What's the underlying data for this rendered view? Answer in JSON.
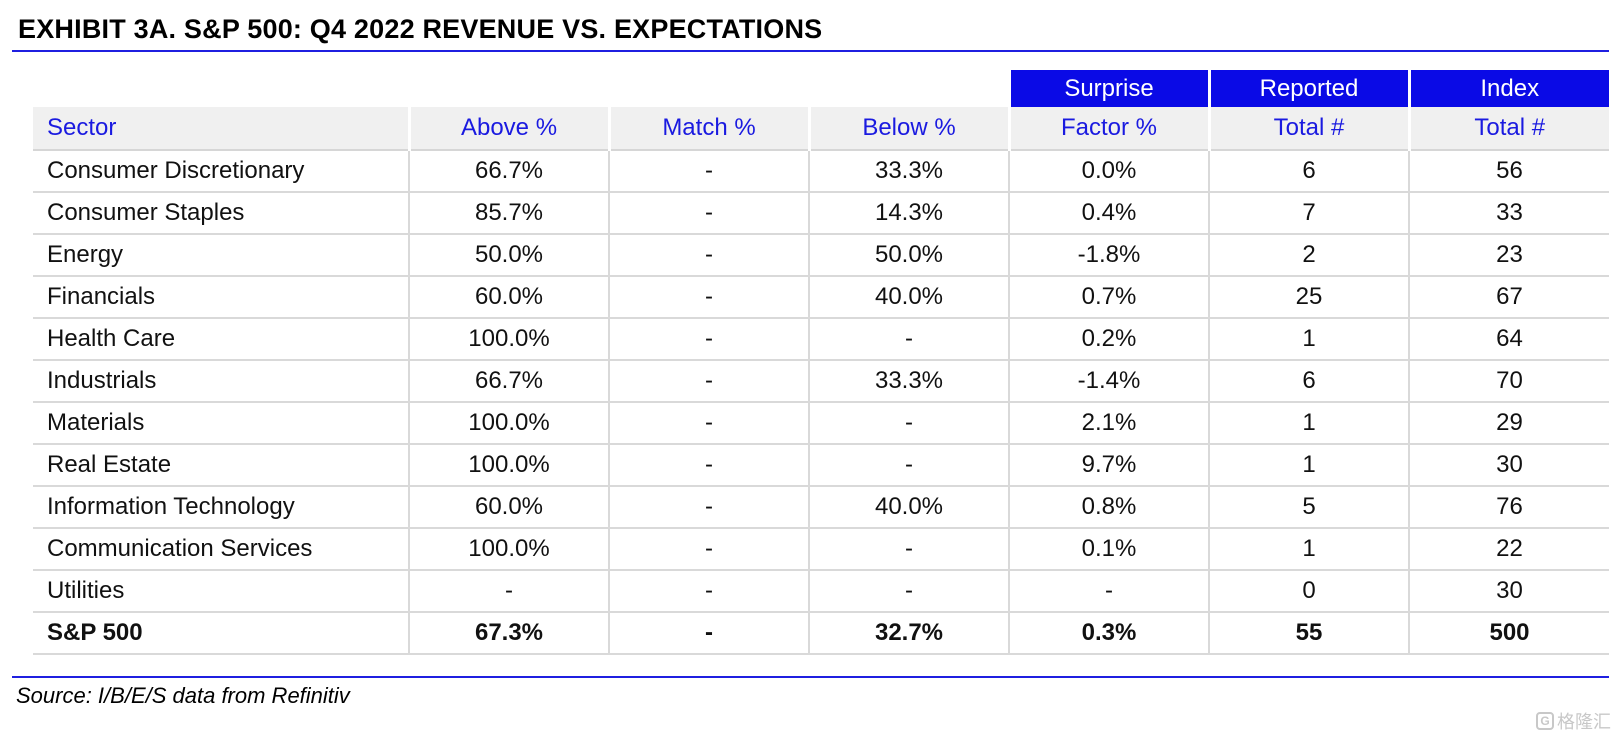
{
  "title": "EXHIBIT 3A.  S&P 500: Q4 2022 REVENUE VS. EXPECTATIONS",
  "colors": {
    "accent": "#0a0ae6",
    "header_bg": "#f0f0f0",
    "header_text": "#1a1ae0"
  },
  "table": {
    "top_headers": [
      "Surprise",
      "Reported",
      "Index"
    ],
    "headers": [
      "Sector",
      "Above %",
      "Match %",
      "Below %",
      "Factor %",
      "Total #",
      "Total #"
    ],
    "rows": [
      [
        "Consumer Discretionary",
        "66.7%",
        "-",
        "33.3%",
        "0.0%",
        "6",
        "56"
      ],
      [
        "Consumer Staples",
        "85.7%",
        "-",
        "14.3%",
        "0.4%",
        "7",
        "33"
      ],
      [
        "Energy",
        "50.0%",
        "-",
        "50.0%",
        "-1.8%",
        "2",
        "23"
      ],
      [
        "Financials",
        "60.0%",
        "-",
        "40.0%",
        "0.7%",
        "25",
        "67"
      ],
      [
        "Health Care",
        "100.0%",
        "-",
        "-",
        "0.2%",
        "1",
        "64"
      ],
      [
        "Industrials",
        "66.7%",
        "-",
        "33.3%",
        "-1.4%",
        "6",
        "70"
      ],
      [
        "Materials",
        "100.0%",
        "-",
        "-",
        "2.1%",
        "1",
        "29"
      ],
      [
        "Real Estate",
        "100.0%",
        "-",
        "-",
        "9.7%",
        "1",
        "30"
      ],
      [
        "Information Technology",
        "60.0%",
        "-",
        "40.0%",
        "0.8%",
        "5",
        "76"
      ],
      [
        "Communication Services",
        "100.0%",
        "-",
        "-",
        "0.1%",
        "1",
        "22"
      ],
      [
        "Utilities",
        "-",
        "-",
        "-",
        "-",
        "0",
        "30"
      ]
    ],
    "total": [
      "S&P 500",
      "67.3%",
      "-",
      "32.7%",
      "0.3%",
      "55",
      "500"
    ]
  },
  "source": "Source: I/B/E/S data from Refinitiv",
  "watermark": {
    "icon": "gelonghui-logo-icon",
    "text": "格隆汇"
  }
}
